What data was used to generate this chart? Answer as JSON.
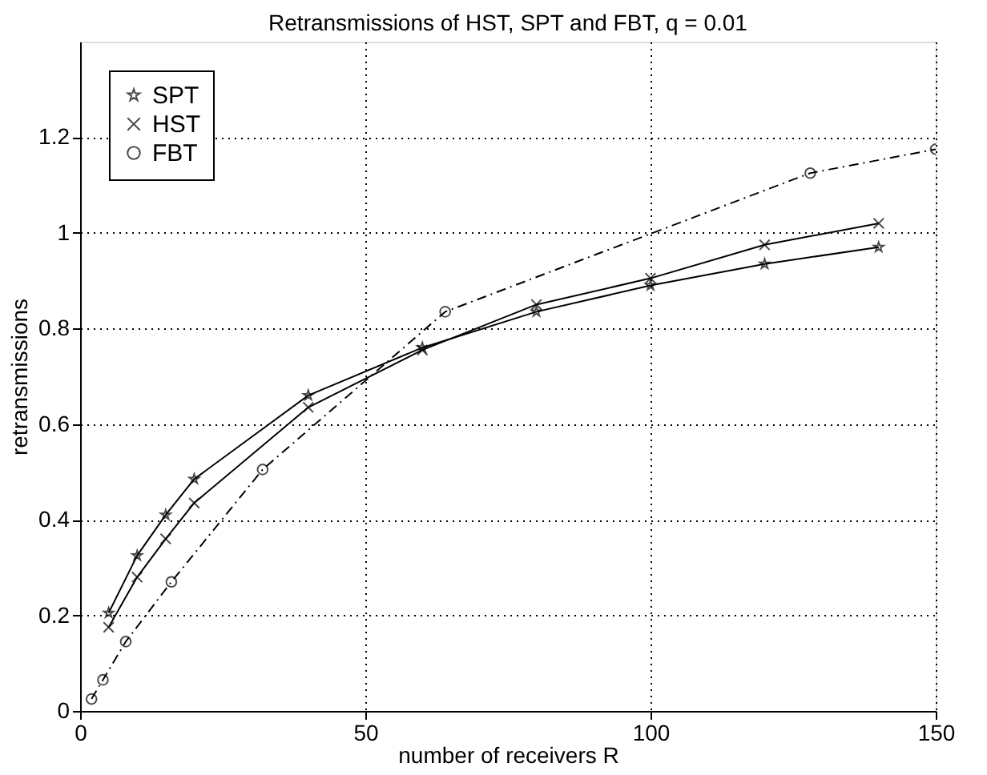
{
  "chart_data": {
    "type": "line",
    "title": "Retransmissions of HST, SPT and FBT, q = 0.01",
    "xlabel": "number of receivers R",
    "ylabel": "retransmissions",
    "xlim": [
      0,
      150
    ],
    "xticks": [
      0,
      50,
      100,
      150
    ],
    "ylim": [
      0,
      1.4
    ],
    "yticks": [
      0,
      0.2,
      0.4,
      0.6,
      0.8,
      1,
      1.2
    ],
    "grid": true,
    "legend": "top left",
    "series": [
      {
        "name": "SPT",
        "color": "#000000",
        "marker": "star",
        "line_style": "solid",
        "x": [
          5,
          10,
          15,
          20,
          40,
          60,
          80,
          100,
          120,
          140
        ],
        "values": [
          0.205,
          0.325,
          0.41,
          0.485,
          0.66,
          0.76,
          0.835,
          0.89,
          0.935,
          0.97
        ]
      },
      {
        "name": "HST",
        "color": "#000000",
        "marker": "cross",
        "line_style": "solid",
        "x": [
          5,
          10,
          15,
          20,
          40,
          60,
          80,
          100,
          120,
          140
        ],
        "values": [
          0.175,
          0.28,
          0.36,
          0.435,
          0.635,
          0.755,
          0.85,
          0.905,
          0.975,
          1.02
        ]
      },
      {
        "name": "FBT",
        "color": "#000000",
        "marker": "circle",
        "line_style": "dashed",
        "x": [
          2,
          4,
          8,
          16,
          32,
          64,
          128,
          150
        ],
        "values": [
          0.025,
          0.065,
          0.145,
          0.27,
          0.505,
          0.835,
          1.125,
          1.175
        ]
      }
    ]
  }
}
